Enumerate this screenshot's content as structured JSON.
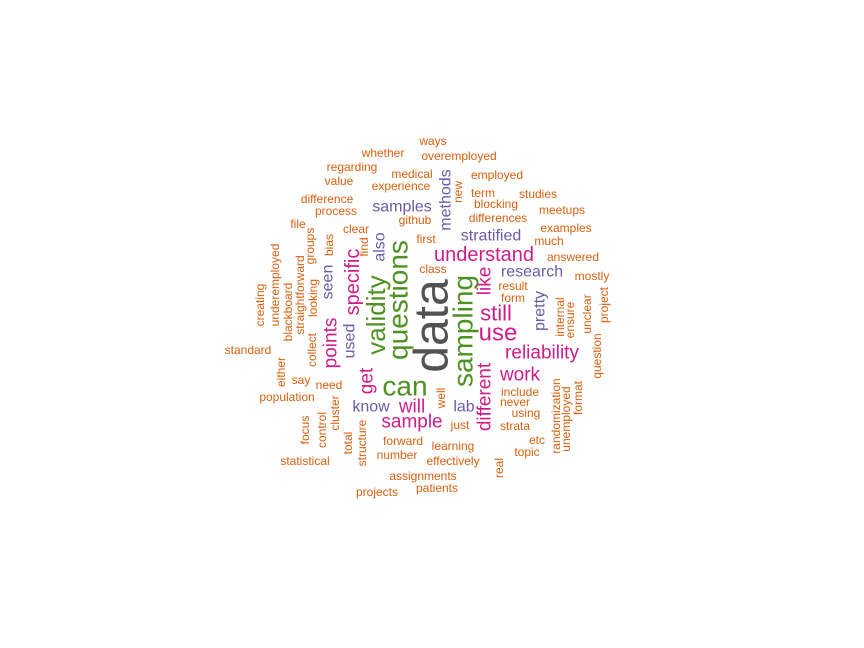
{
  "chart_data": {
    "type": "wordcloud",
    "title": "",
    "colors": {
      "c1": "#525252",
      "c2": "#4D9221",
      "c3": "#D01C8B",
      "c4": "#6A5AA8",
      "c5": "#D95F0E"
    },
    "words": [
      {
        "text": "data",
        "size": 48,
        "color": "c1",
        "rot": -90
      },
      {
        "text": "can",
        "size": 28,
        "color": "c2",
        "rot": 0
      },
      {
        "text": "questions",
        "size": 28,
        "color": "c2",
        "rot": -90
      },
      {
        "text": "sampling",
        "size": 28,
        "color": "c2",
        "rot": -90
      },
      {
        "text": "validity",
        "size": 26,
        "color": "c2",
        "rot": -90
      },
      {
        "text": "use",
        "size": 24,
        "color": "c3",
        "rot": 0
      },
      {
        "text": "still",
        "size": 22,
        "color": "c3",
        "rot": 0
      },
      {
        "text": "understand",
        "size": 20,
        "color": "c3",
        "rot": 0
      },
      {
        "text": "reliability",
        "size": 19,
        "color": "c3",
        "rot": 0
      },
      {
        "text": "specific",
        "size": 20,
        "color": "c3",
        "rot": -90
      },
      {
        "text": "points",
        "size": 19,
        "color": "c3",
        "rot": -90
      },
      {
        "text": "work",
        "size": 19,
        "color": "c3",
        "rot": 0
      },
      {
        "text": "sample",
        "size": 19,
        "color": "c3",
        "rot": 0
      },
      {
        "text": "different",
        "size": 19,
        "color": "c3",
        "rot": -90
      },
      {
        "text": "like",
        "size": 19,
        "color": "c3",
        "rot": -90
      },
      {
        "text": "get",
        "size": 19,
        "color": "c3",
        "rot": -90
      },
      {
        "text": "will",
        "size": 19,
        "color": "c3",
        "rot": 0
      },
      {
        "text": "samples",
        "size": 16,
        "color": "c4",
        "rot": 0
      },
      {
        "text": "stratified",
        "size": 16,
        "color": "c4",
        "rot": 0
      },
      {
        "text": "research",
        "size": 16,
        "color": "c4",
        "rot": 0
      },
      {
        "text": "methods",
        "size": 16,
        "color": "c4",
        "rot": -90
      },
      {
        "text": "also",
        "size": 16,
        "color": "c4",
        "rot": -90
      },
      {
        "text": "seen",
        "size": 16,
        "color": "c4",
        "rot": -90
      },
      {
        "text": "used",
        "size": 16,
        "color": "c4",
        "rot": -90
      },
      {
        "text": "pretty",
        "size": 16,
        "color": "c4",
        "rot": -90
      },
      {
        "text": "know",
        "size": 16,
        "color": "c4",
        "rot": 0
      },
      {
        "text": "lab",
        "size": 16,
        "color": "c4",
        "rot": 0
      },
      {
        "text": "ways",
        "size": 12,
        "color": "c5",
        "rot": 0
      },
      {
        "text": "whether",
        "size": 12,
        "color": "c5",
        "rot": 0
      },
      {
        "text": "overemployed",
        "size": 12,
        "color": "c5",
        "rot": 0
      },
      {
        "text": "regarding",
        "size": 12,
        "color": "c5",
        "rot": 0
      },
      {
        "text": "medical",
        "size": 12,
        "color": "c5",
        "rot": 0
      },
      {
        "text": "employed",
        "size": 12,
        "color": "c5",
        "rot": 0
      },
      {
        "text": "value",
        "size": 12,
        "color": "c5",
        "rot": 0
      },
      {
        "text": "experience",
        "size": 12,
        "color": "c5",
        "rot": 0
      },
      {
        "text": "new",
        "size": 12,
        "color": "c5",
        "rot": -90
      },
      {
        "text": "term",
        "size": 12,
        "color": "c5",
        "rot": 0
      },
      {
        "text": "studies",
        "size": 12,
        "color": "c5",
        "rot": 0
      },
      {
        "text": "difference",
        "size": 12,
        "color": "c5",
        "rot": 0
      },
      {
        "text": "blocking",
        "size": 12,
        "color": "c5",
        "rot": 0
      },
      {
        "text": "process",
        "size": 12,
        "color": "c5",
        "rot": 0
      },
      {
        "text": "meetups",
        "size": 12,
        "color": "c5",
        "rot": 0
      },
      {
        "text": "file",
        "size": 12,
        "color": "c5",
        "rot": 0
      },
      {
        "text": "github",
        "size": 12,
        "color": "c5",
        "rot": 0
      },
      {
        "text": "differences",
        "size": 12,
        "color": "c5",
        "rot": 0
      },
      {
        "text": "examples",
        "size": 12,
        "color": "c5",
        "rot": 0
      },
      {
        "text": "clear",
        "size": 12,
        "color": "c5",
        "rot": 0
      },
      {
        "text": "groups",
        "size": 12,
        "color": "c5",
        "rot": -90
      },
      {
        "text": "bias",
        "size": 12,
        "color": "c5",
        "rot": -90
      },
      {
        "text": "find",
        "size": 12,
        "color": "c5",
        "rot": -90
      },
      {
        "text": "first",
        "size": 12,
        "color": "c5",
        "rot": 0
      },
      {
        "text": "much",
        "size": 12,
        "color": "c5",
        "rot": 0
      },
      {
        "text": "creating",
        "size": 12,
        "color": "c5",
        "rot": -90
      },
      {
        "text": "underemployed",
        "size": 12,
        "color": "c5",
        "rot": -90
      },
      {
        "text": "straightforward",
        "size": 12,
        "color": "c5",
        "rot": -90
      },
      {
        "text": "blackboard",
        "size": 12,
        "color": "c5",
        "rot": -90
      },
      {
        "text": "looking",
        "size": 12,
        "color": "c5",
        "rot": -90
      },
      {
        "text": "answered",
        "size": 12,
        "color": "c5",
        "rot": 0
      },
      {
        "text": "class",
        "size": 12,
        "color": "c5",
        "rot": 0
      },
      {
        "text": "mostly",
        "size": 12,
        "color": "c5",
        "rot": 0
      },
      {
        "text": "result",
        "size": 12,
        "color": "c5",
        "rot": 0
      },
      {
        "text": "form",
        "size": 12,
        "color": "c5",
        "rot": 0
      },
      {
        "text": "project",
        "size": 12,
        "color": "c5",
        "rot": -90
      },
      {
        "text": "internal",
        "size": 12,
        "color": "c5",
        "rot": -90
      },
      {
        "text": "unclear",
        "size": 12,
        "color": "c5",
        "rot": -90
      },
      {
        "text": "ensure",
        "size": 12,
        "color": "c5",
        "rot": -90
      },
      {
        "text": "standard",
        "size": 12,
        "color": "c5",
        "rot": 0
      },
      {
        "text": "collect",
        "size": 12,
        "color": "c5",
        "rot": -90
      },
      {
        "text": "either",
        "size": 12,
        "color": "c5",
        "rot": -90
      },
      {
        "text": "question",
        "size": 12,
        "color": "c5",
        "rot": -90
      },
      {
        "text": "say",
        "size": 12,
        "color": "c5",
        "rot": 0
      },
      {
        "text": "need",
        "size": 12,
        "color": "c5",
        "rot": 0
      },
      {
        "text": "include",
        "size": 12,
        "color": "c5",
        "rot": 0
      },
      {
        "text": "format",
        "size": 12,
        "color": "c5",
        "rot": -90
      },
      {
        "text": "population",
        "size": 12,
        "color": "c5",
        "rot": 0
      },
      {
        "text": "well",
        "size": 12,
        "color": "c5",
        "rot": -90
      },
      {
        "text": "never",
        "size": 12,
        "color": "c5",
        "rot": 0
      },
      {
        "text": "cluster",
        "size": 12,
        "color": "c5",
        "rot": -90
      },
      {
        "text": "using",
        "size": 12,
        "color": "c5",
        "rot": 0
      },
      {
        "text": "focus",
        "size": 12,
        "color": "c5",
        "rot": -90
      },
      {
        "text": "control",
        "size": 12,
        "color": "c5",
        "rot": -90
      },
      {
        "text": "just",
        "size": 12,
        "color": "c5",
        "rot": 0
      },
      {
        "text": "strata",
        "size": 12,
        "color": "c5",
        "rot": 0
      },
      {
        "text": "randomization",
        "size": 12,
        "color": "c5",
        "rot": -90
      },
      {
        "text": "unemployed",
        "size": 12,
        "color": "c5",
        "rot": -90
      },
      {
        "text": "total",
        "size": 12,
        "color": "c5",
        "rot": -90
      },
      {
        "text": "structure",
        "size": 12,
        "color": "c5",
        "rot": -90
      },
      {
        "text": "forward",
        "size": 12,
        "color": "c5",
        "rot": 0
      },
      {
        "text": "etc",
        "size": 12,
        "color": "c5",
        "rot": 0
      },
      {
        "text": "learning",
        "size": 12,
        "color": "c5",
        "rot": 0
      },
      {
        "text": "topic",
        "size": 12,
        "color": "c5",
        "rot": 0
      },
      {
        "text": "statistical",
        "size": 12,
        "color": "c5",
        "rot": 0
      },
      {
        "text": "number",
        "size": 12,
        "color": "c5",
        "rot": 0
      },
      {
        "text": "effectively",
        "size": 12,
        "color": "c5",
        "rot": 0
      },
      {
        "text": "real",
        "size": 12,
        "color": "c5",
        "rot": -90
      },
      {
        "text": "assignments",
        "size": 12,
        "color": "c5",
        "rot": 0
      },
      {
        "text": "patients",
        "size": 12,
        "color": "c5",
        "rot": 0
      },
      {
        "text": "projects",
        "size": 12,
        "color": "c5",
        "rot": 0
      }
    ]
  }
}
